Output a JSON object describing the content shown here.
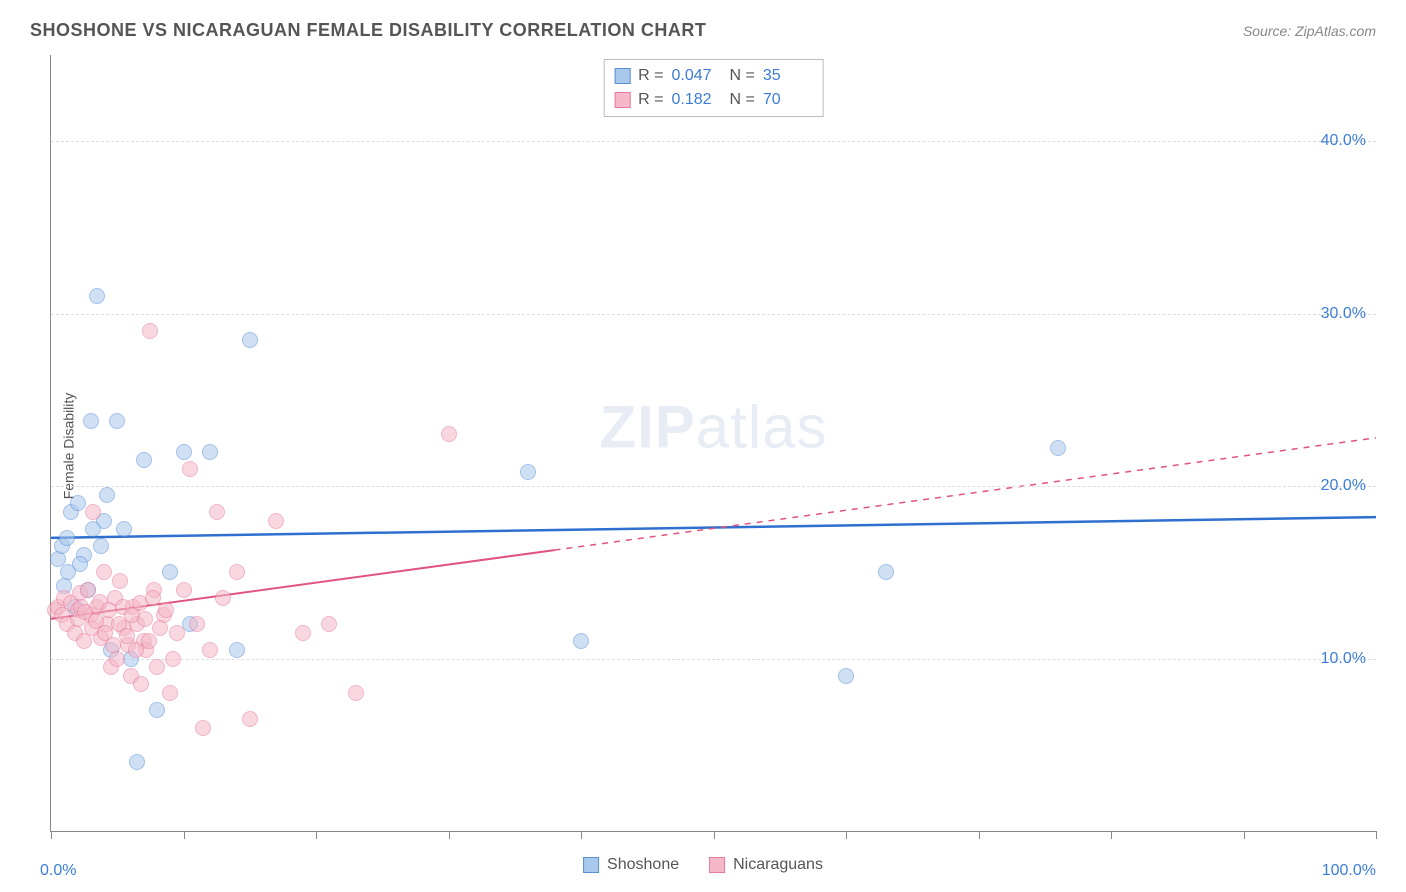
{
  "title": "SHOSHONE VS NICARAGUAN FEMALE DISABILITY CORRELATION CHART",
  "source": "Source: ZipAtlas.com",
  "ylabel": "Female Disability",
  "watermark": {
    "bold": "ZIP",
    "rest": "atlas"
  },
  "chart": {
    "type": "scatter",
    "xlim": [
      0,
      100
    ],
    "ylim": [
      0,
      45
    ],
    "x_ticks": [
      0,
      10,
      20,
      30,
      40,
      50,
      60,
      70,
      80,
      90,
      100
    ],
    "x_tick_labels": {
      "0": "0.0%",
      "100": "100.0%"
    },
    "y_gridlines": [
      10,
      20,
      30,
      40
    ],
    "y_tick_labels": {
      "10": "10.0%",
      "20": "20.0%",
      "30": "30.0%",
      "40": "40.0%"
    },
    "grid_color": "#dddddd",
    "axis_color": "#888888",
    "background_color": "#ffffff",
    "point_radius": 8,
    "point_opacity": 0.55,
    "series": [
      {
        "name": "Shoshone",
        "fill": "#a8c8ec",
        "stroke": "#5b8fd6",
        "r_value": "0.047",
        "n_value": "35",
        "trend": {
          "x1": 0,
          "y1": 17.0,
          "x2": 100,
          "y2": 18.2,
          "solid_until": 100,
          "color": "#2f6fd0",
          "width": 2.5
        },
        "points": [
          [
            0.5,
            15.8
          ],
          [
            0.8,
            16.5
          ],
          [
            1.0,
            14.2
          ],
          [
            1.2,
            17.0
          ],
          [
            1.5,
            18.5
          ],
          [
            2.0,
            19.0
          ],
          [
            2.5,
            16.0
          ],
          [
            3.0,
            23.8
          ],
          [
            3.5,
            31.0
          ],
          [
            4.0,
            18.0
          ],
          [
            4.5,
            10.5
          ],
          [
            5.0,
            23.8
          ],
          [
            6.0,
            10.0
          ],
          [
            6.5,
            4.0
          ],
          [
            7.0,
            21.5
          ],
          [
            8.0,
            7.0
          ],
          [
            9.0,
            15.0
          ],
          [
            10.0,
            22.0
          ],
          [
            10.5,
            12.0
          ],
          [
            12.0,
            22.0
          ],
          [
            14.0,
            10.5
          ],
          [
            15.0,
            28.5
          ],
          [
            36.0,
            20.8
          ],
          [
            40.0,
            11.0
          ],
          [
            60.0,
            9.0
          ],
          [
            63.0,
            15.0
          ],
          [
            76.0,
            22.2
          ],
          [
            2.2,
            15.5
          ],
          [
            3.2,
            17.5
          ],
          [
            4.2,
            19.5
          ],
          [
            1.8,
            13.0
          ],
          [
            2.8,
            14.0
          ],
          [
            3.8,
            16.5
          ],
          [
            5.5,
            17.5
          ],
          [
            1.3,
            15.0
          ]
        ]
      },
      {
        "name": "Nicaraguans",
        "fill": "#f4b8c8",
        "stroke": "#e77a9a",
        "r_value": "0.182",
        "n_value": "70",
        "trend": {
          "x1": 0,
          "y1": 12.3,
          "x2": 100,
          "y2": 22.8,
          "solid_until": 38,
          "color": "#e0557f",
          "width": 2
        },
        "points": [
          [
            0.3,
            12.8
          ],
          [
            0.5,
            13.0
          ],
          [
            0.8,
            12.5
          ],
          [
            1.0,
            13.5
          ],
          [
            1.2,
            12.0
          ],
          [
            1.5,
            13.2
          ],
          [
            1.8,
            11.5
          ],
          [
            2.0,
            12.8
          ],
          [
            2.2,
            13.8
          ],
          [
            2.5,
            11.0
          ],
          [
            2.8,
            14.0
          ],
          [
            3.0,
            12.5
          ],
          [
            3.2,
            18.5
          ],
          [
            3.5,
            13.0
          ],
          [
            3.8,
            11.2
          ],
          [
            4.0,
            15.0
          ],
          [
            4.2,
            12.0
          ],
          [
            4.5,
            9.5
          ],
          [
            4.8,
            13.5
          ],
          [
            5.0,
            10.0
          ],
          [
            5.2,
            14.5
          ],
          [
            5.5,
            11.8
          ],
          [
            5.8,
            10.8
          ],
          [
            6.0,
            9.0
          ],
          [
            6.2,
            13.0
          ],
          [
            6.5,
            12.0
          ],
          [
            6.8,
            8.5
          ],
          [
            7.0,
            11.0
          ],
          [
            7.2,
            10.5
          ],
          [
            7.5,
            29.0
          ],
          [
            7.8,
            14.0
          ],
          [
            8.0,
            9.5
          ],
          [
            8.5,
            12.5
          ],
          [
            9.0,
            8.0
          ],
          [
            9.5,
            11.5
          ],
          [
            10.0,
            14.0
          ],
          [
            10.5,
            21.0
          ],
          [
            11.0,
            12.0
          ],
          [
            11.5,
            6.0
          ],
          [
            12.0,
            10.5
          ],
          [
            12.5,
            18.5
          ],
          [
            13.0,
            13.5
          ],
          [
            14.0,
            15.0
          ],
          [
            15.0,
            6.5
          ],
          [
            17.0,
            18.0
          ],
          [
            19.0,
            11.5
          ],
          [
            21.0,
            12.0
          ],
          [
            23.0,
            8.0
          ],
          [
            30.0,
            23.0
          ],
          [
            2.0,
            12.3
          ],
          [
            2.3,
            13.0
          ],
          [
            2.6,
            12.7
          ],
          [
            3.1,
            11.8
          ],
          [
            3.4,
            12.2
          ],
          [
            3.7,
            13.3
          ],
          [
            4.1,
            11.5
          ],
          [
            4.4,
            12.8
          ],
          [
            4.7,
            10.8
          ],
          [
            5.1,
            12.0
          ],
          [
            5.4,
            13.0
          ],
          [
            5.7,
            11.3
          ],
          [
            6.1,
            12.5
          ],
          [
            6.4,
            10.5
          ],
          [
            6.7,
            13.2
          ],
          [
            7.1,
            12.3
          ],
          [
            7.4,
            11.0
          ],
          [
            7.7,
            13.5
          ],
          [
            8.2,
            11.8
          ],
          [
            8.7,
            12.8
          ],
          [
            9.2,
            10.0
          ]
        ]
      }
    ]
  },
  "stat_legend": {
    "r_label": "R =",
    "n_label": "N ="
  },
  "bottom_legend": [
    {
      "label": "Shoshone",
      "fill": "#a8c8ec",
      "stroke": "#5b8fd6"
    },
    {
      "label": "Nicaraguans",
      "fill": "#f4b8c8",
      "stroke": "#e77a9a"
    }
  ]
}
